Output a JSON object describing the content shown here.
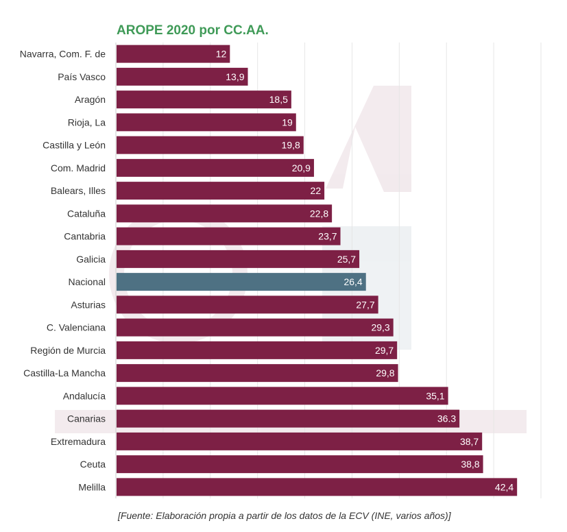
{
  "chart_data": {
    "type": "bar",
    "orientation": "horizontal",
    "title": "AROPE 2020 por CC.AA.",
    "source": "[Fuente: Elaboración propia a partir de los datos de la ECV (INE, varios años)]",
    "categories": [
      "Navarra, Com. F. de",
      "País Vasco",
      "Aragón",
      "Rioja, La",
      "Castilla y León",
      "Com. Madrid",
      "Balears, Illes",
      "Cataluña",
      "Cantabria",
      "Galicia",
      "Nacional",
      "Asturias",
      "C. Valenciana",
      "Región de Murcia",
      "Castilla-La Mancha",
      "Andalucía",
      "Canarias",
      "Extremadura",
      "Ceuta",
      "Melilla"
    ],
    "values": [
      12,
      13.9,
      18.5,
      19,
      19.8,
      20.9,
      22,
      22.8,
      23.7,
      25.7,
      26.4,
      27.7,
      29.3,
      29.7,
      29.8,
      35.1,
      36.3,
      38.7,
      38.8,
      42.4
    ],
    "value_labels": [
      "12",
      "13,9",
      "18,5",
      "19",
      "19,8",
      "20,9",
      "22",
      "22,8",
      "23,7",
      "25,7",
      "26,4",
      "27,7",
      "29,3",
      "29,7",
      "29,8",
      "35,1",
      "36.3",
      "38,7",
      "38,8",
      "42,4"
    ],
    "xlim": [
      0,
      45
    ],
    "grid": true,
    "legend": "none",
    "colors": {
      "bar": "#7d2045",
      "highlight": "#4e7183",
      "title": "#3f9a57",
      "grid": "#e6e6e6"
    },
    "highlight_category": "Nacional"
  }
}
